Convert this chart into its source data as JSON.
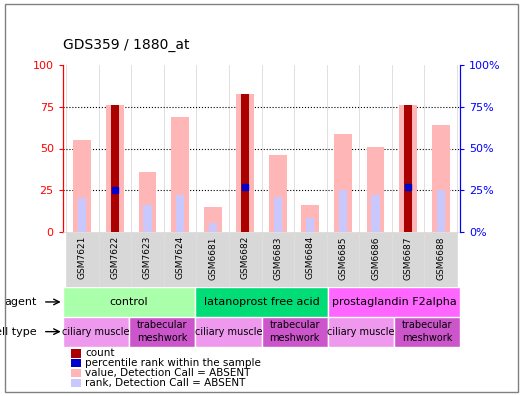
{
  "title": "GDS359 / 1880_at",
  "samples": [
    "GSM7621",
    "GSM7622",
    "GSM7623",
    "GSM7624",
    "GSM6681",
    "GSM6682",
    "GSM6683",
    "GSM6684",
    "GSM6685",
    "GSM6686",
    "GSM6687",
    "GSM6688"
  ],
  "value_absent": [
    55,
    76,
    36,
    69,
    15,
    83,
    46,
    16,
    59,
    51,
    76,
    64
  ],
  "rank_absent": [
    20,
    25,
    16,
    22,
    5,
    27,
    21,
    8,
    25,
    22,
    27,
    25
  ],
  "count": [
    0,
    76,
    0,
    0,
    0,
    83,
    0,
    0,
    0,
    0,
    76,
    0
  ],
  "percentile": [
    0,
    25,
    0,
    0,
    0,
    27,
    0,
    0,
    0,
    0,
    27,
    0
  ],
  "has_count": [
    false,
    true,
    false,
    false,
    false,
    true,
    false,
    false,
    false,
    false,
    true,
    false
  ],
  "has_percentile": [
    false,
    true,
    false,
    false,
    false,
    true,
    false,
    false,
    false,
    false,
    true,
    false
  ],
  "color_value_absent": "#ffb6b6",
  "color_rank_absent": "#c8c8ff",
  "color_count": "#aa0000",
  "color_percentile": "#0000cc",
  "agent_groups": [
    {
      "label": "control",
      "start": 0,
      "end": 3,
      "color": "#aaffaa"
    },
    {
      "label": "latanoprost free acid",
      "start": 4,
      "end": 7,
      "color": "#00dd77"
    },
    {
      "label": "prostaglandin F2alpha",
      "start": 8,
      "end": 11,
      "color": "#ff66ff"
    }
  ],
  "celltype_groups": [
    {
      "label": "ciliary muscle",
      "start": 0,
      "end": 1,
      "color": "#ee99ee"
    },
    {
      "label": "trabecular\nmeshwork",
      "start": 2,
      "end": 3,
      "color": "#cc55cc"
    },
    {
      "label": "ciliary muscle",
      "start": 4,
      "end": 5,
      "color": "#ee99ee"
    },
    {
      "label": "trabecular\nmeshwork",
      "start": 6,
      "end": 7,
      "color": "#cc55cc"
    },
    {
      "label": "ciliary muscle",
      "start": 8,
      "end": 9,
      "color": "#ee99ee"
    },
    {
      "label": "trabecular\nmeshwork",
      "start": 10,
      "end": 11,
      "color": "#cc55cc"
    }
  ],
  "ylim": [
    0,
    100
  ],
  "yticks": [
    0,
    25,
    50,
    75,
    100
  ],
  "background_color": "#ffffff",
  "plot_bg": "#ffffff",
  "legend_items": [
    {
      "label": "count",
      "color": "#aa0000"
    },
    {
      "label": "percentile rank within the sample",
      "color": "#0000cc"
    },
    {
      "label": "value, Detection Call = ABSENT",
      "color": "#ffb6b6"
    },
    {
      "label": "rank, Detection Call = ABSENT",
      "color": "#c8c8ff"
    }
  ]
}
